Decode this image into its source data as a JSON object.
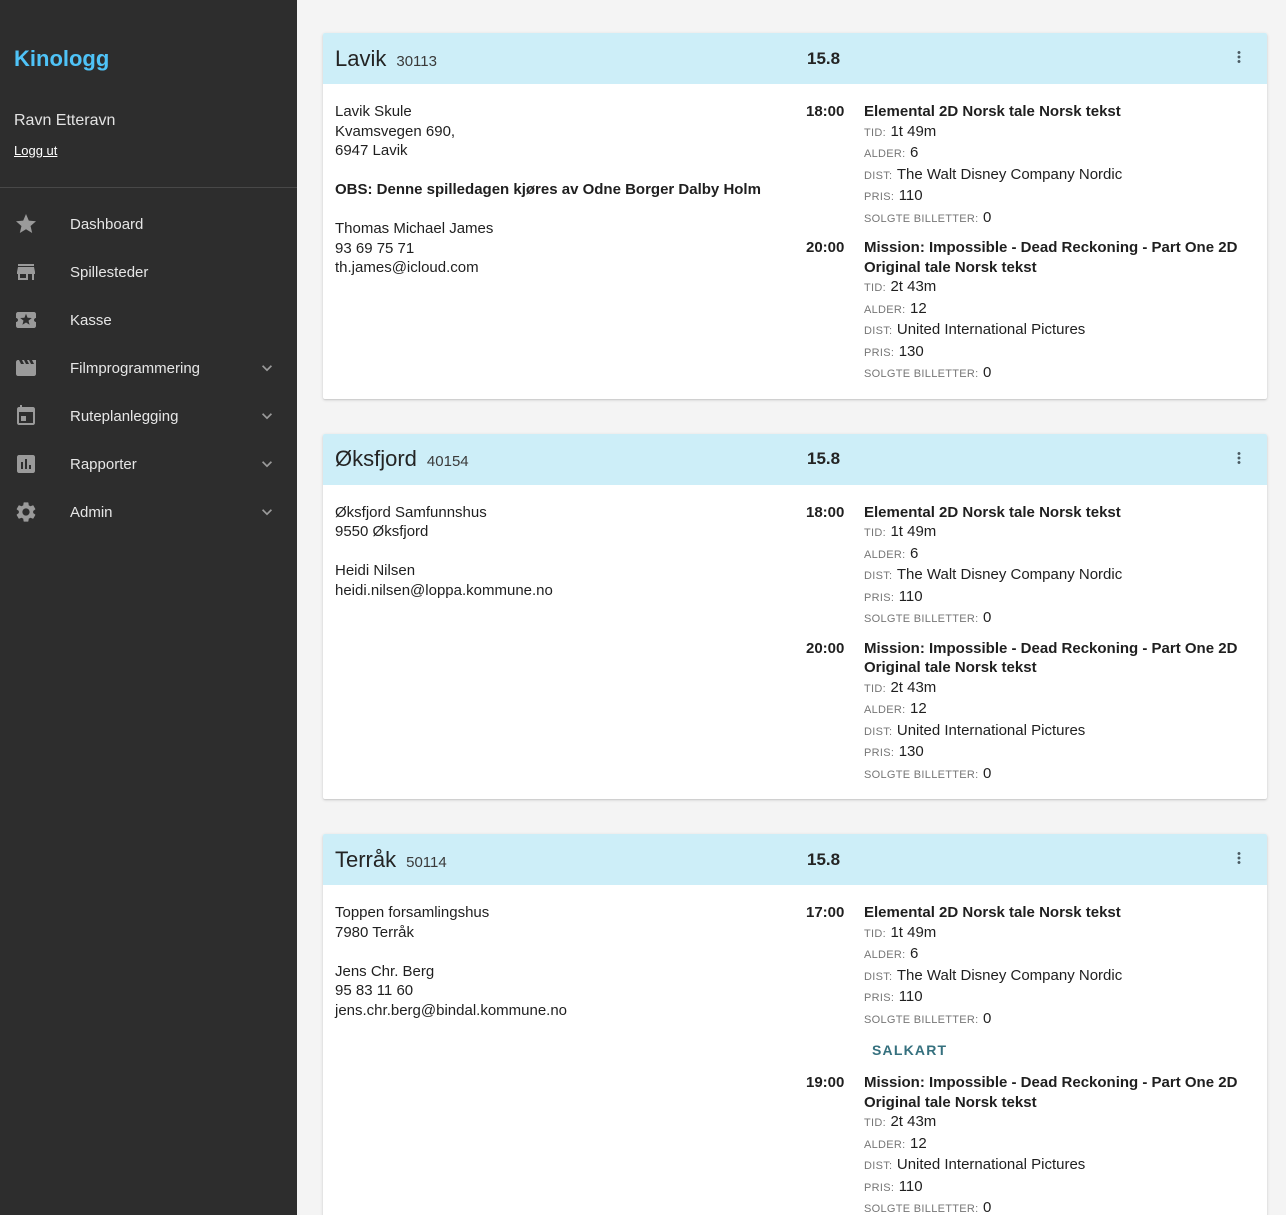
{
  "sidebar": {
    "brand": "Kinologg",
    "user_name": "Ravn Etteravn",
    "logout_label": "Logg ut",
    "nav": [
      {
        "label": "Dashboard",
        "icon": "star-icon",
        "expandable": false
      },
      {
        "label": "Spillesteder",
        "icon": "storefront-icon",
        "expandable": false
      },
      {
        "label": "Kasse",
        "icon": "ticket-icon",
        "expandable": false
      },
      {
        "label": "Filmprogrammering",
        "icon": "movie-icon",
        "expandable": true
      },
      {
        "label": "Ruteplanlegging",
        "icon": "calendar-icon",
        "expandable": true
      },
      {
        "label": "Rapporter",
        "icon": "bar-chart-icon",
        "expandable": true
      },
      {
        "label": "Admin",
        "icon": "gear-icon",
        "expandable": true
      }
    ]
  },
  "labels": {
    "tid": "TID:",
    "alder": "ALDER:",
    "dist": "DIST:",
    "pris": "PRIS:",
    "solgte": "SOLGTE BILLETTER:",
    "salkart": "SALKART"
  },
  "icons": {
    "star-icon": "★",
    "storefront-icon": "⌂",
    "ticket-icon": "🎟",
    "movie-icon": "🎬",
    "calendar-icon": "📅",
    "bar-chart-icon": "📊",
    "gear-icon": "⚙",
    "chevron-down-icon": "⌄",
    "kebab-icon": "⋮"
  },
  "colors": {
    "brand_accent": "#4fc3f7",
    "card_header_bg": "#cdeef8",
    "sidebar_bg": "#2d2d2d",
    "salkart_text": "#35707e"
  },
  "venues": [
    {
      "name": "Lavik",
      "number": "30113",
      "date": "15.8",
      "address_lines": [
        "Lavik Skule",
        "Kvamsvegen 690,",
        "6947 Lavik"
      ],
      "note": "OBS: Denne spilledagen kjøres av Odne Borger Dalby Holm",
      "contact_lines": [
        "Thomas Michael James",
        "93 69 75 71",
        "th.james@icloud.com"
      ],
      "shows": [
        {
          "time": "18:00",
          "title": "Elemental 2D Norsk tale Norsk tekst",
          "tid": "1t 49m",
          "alder": "6",
          "dist": "The Walt Disney Company Nordic",
          "pris": "110",
          "solgte": "0",
          "salkart": false
        },
        {
          "time": "20:00",
          "title": "Mission: Impossible - Dead Reckoning - Part One 2D Original tale Norsk tekst",
          "tid": "2t 43m",
          "alder": "12",
          "dist": "United International Pictures",
          "pris": "130",
          "solgte": "0",
          "salkart": false
        }
      ]
    },
    {
      "name": "Øksfjord",
      "number": "40154",
      "date": "15.8",
      "address_lines": [
        "Øksfjord Samfunnshus",
        "9550 Øksfjord"
      ],
      "note": "",
      "contact_lines": [
        "Heidi Nilsen",
        "heidi.nilsen@loppa.kommune.no"
      ],
      "shows": [
        {
          "time": "18:00",
          "title": "Elemental 2D Norsk tale Norsk tekst",
          "tid": "1t 49m",
          "alder": "6",
          "dist": "The Walt Disney Company Nordic",
          "pris": "110",
          "solgte": "0",
          "salkart": false
        },
        {
          "time": "20:00",
          "title": "Mission: Impossible - Dead Reckoning - Part One 2D Original tale Norsk tekst",
          "tid": "2t 43m",
          "alder": "12",
          "dist": "United International Pictures",
          "pris": "130",
          "solgte": "0",
          "salkart": false
        }
      ]
    },
    {
      "name": "Terråk",
      "number": "50114",
      "date": "15.8",
      "address_lines": [
        "Toppen forsamlingshus",
        "7980 Terråk"
      ],
      "note": "",
      "contact_lines": [
        "Jens Chr. Berg",
        "95 83 11 60",
        "jens.chr.berg@bindal.kommune.no"
      ],
      "shows": [
        {
          "time": "17:00",
          "title": "Elemental 2D Norsk tale Norsk tekst",
          "tid": "1t 49m",
          "alder": "6",
          "dist": "The Walt Disney Company Nordic",
          "pris": "110",
          "solgte": "0",
          "salkart": true
        },
        {
          "time": "19:00",
          "title": "Mission: Impossible - Dead Reckoning - Part One 2D Original tale Norsk tekst",
          "tid": "2t 43m",
          "alder": "12",
          "dist": "United International Pictures",
          "pris": "110",
          "solgte": "0",
          "salkart": true
        }
      ]
    }
  ]
}
